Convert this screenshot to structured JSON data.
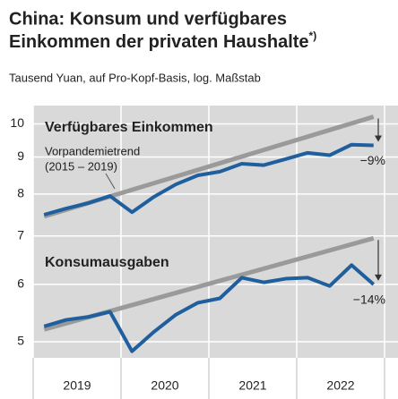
{
  "chart_data": {
    "type": "line",
    "title": [
      "China: Konsum und verfügbares",
      "Einkommen der privaten Haushalte"
    ],
    "title_note": "*)",
    "subtitle": "Tausend Yuan, auf Pro-Kopf-Basis, log. Maßstab",
    "log_y": true,
    "grid": true,
    "x": [
      2019.125,
      2019.375,
      2019.625,
      2019.875,
      2020.125,
      2020.375,
      2020.625,
      2020.875,
      2021.125,
      2021.375,
      2021.625,
      2021.875,
      2022.125,
      2022.375,
      2022.625,
      2022.875
    ],
    "xlim": [
      2019,
      2023
    ],
    "xticks": [
      {
        "value": 2019.5,
        "label": "2019"
      },
      {
        "value": 2020.5,
        "label": "2020"
      },
      {
        "value": 2021.5,
        "label": "2021"
      },
      {
        "value": 2022.5,
        "label": "2022"
      }
    ],
    "ylim": [
      4.75,
      10.6
    ],
    "yticks": [
      5,
      6,
      7,
      8,
      9,
      10
    ],
    "series": [
      {
        "name": "Verfügbares Einkommen",
        "color": "#1f5f9e",
        "values": [
          7.49,
          7.64,
          7.77,
          7.95,
          7.55,
          7.93,
          8.25,
          8.49,
          8.59,
          8.81,
          8.77,
          8.94,
          9.12,
          9.05,
          9.36,
          9.34
        ]
      },
      {
        "name": "Konsumausgaben",
        "color": "#1f5f9e",
        "values": [
          5.25,
          5.36,
          5.41,
          5.5,
          4.85,
          5.16,
          5.45,
          5.66,
          5.74,
          6.13,
          6.04,
          6.11,
          6.13,
          5.97,
          6.38,
          6.0
        ]
      }
    ],
    "trend_label": [
      "Vorpandemietrend",
      "(2015 – 2019)"
    ],
    "trend_color": "#9a9a9a",
    "trend_x": [
      2019.125,
      2022.875
    ],
    "trends": [
      [
        7.45,
        10.23
      ],
      [
        5.2,
        6.95
      ]
    ],
    "annotations": [
      "−9%",
      "−14%"
    ]
  }
}
